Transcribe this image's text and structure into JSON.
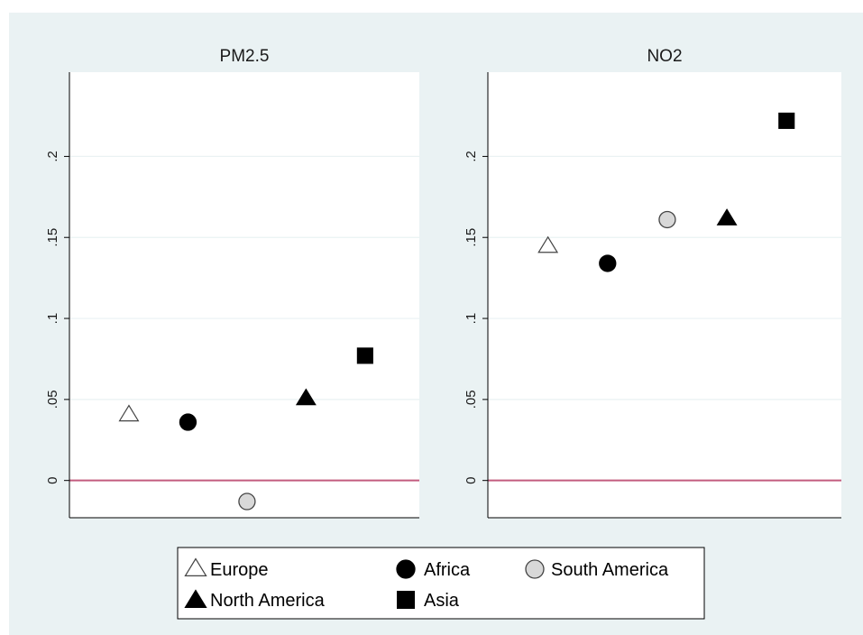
{
  "chart_data": [
    {
      "type": "scatter",
      "title": "PM2.5",
      "categories": [
        "Europe",
        "Africa",
        "South America",
        "North America",
        "Asia"
      ],
      "series": [
        {
          "name": "Europe",
          "values": [
            0.041
          ]
        },
        {
          "name": "Africa",
          "values": [
            0.036
          ]
        },
        {
          "name": "South America",
          "values": [
            -0.013
          ]
        },
        {
          "name": "North America",
          "values": [
            0.051
          ]
        },
        {
          "name": "Asia",
          "values": [
            0.077
          ]
        }
      ],
      "ylim": [
        -0.023,
        0.252
      ],
      "yticks": [
        0,
        0.05,
        0.1,
        0.15,
        0.2
      ],
      "ytick_labels": [
        "0",
        ".05",
        ".1",
        ".15",
        ".2"
      ],
      "reference_line": 0,
      "grid": true
    },
    {
      "type": "scatter",
      "title": "NO2",
      "categories": [
        "Europe",
        "Africa",
        "South America",
        "North America",
        "Asia"
      ],
      "series": [
        {
          "name": "Europe",
          "values": [
            0.145
          ]
        },
        {
          "name": "Africa",
          "values": [
            0.134
          ]
        },
        {
          "name": "South America",
          "values": [
            0.161
          ]
        },
        {
          "name": "North America",
          "values": [
            0.162
          ]
        },
        {
          "name": "Asia",
          "values": [
            0.222
          ]
        }
      ],
      "ylim": [
        -0.023,
        0.252
      ],
      "yticks": [
        0,
        0.05,
        0.1,
        0.15,
        0.2
      ],
      "ytick_labels": [
        "0",
        ".05",
        ".1",
        ".15",
        ".2"
      ],
      "reference_line": 0,
      "grid": true
    }
  ],
  "legend": {
    "placement": "bottom",
    "items": [
      {
        "label": "Europe",
        "marker": "hollow-triangle"
      },
      {
        "label": "Africa",
        "marker": "filled-circle"
      },
      {
        "label": "South America",
        "marker": "hollow-circle"
      },
      {
        "label": "North America",
        "marker": "filled-triangle"
      },
      {
        "label": "Asia",
        "marker": "filled-square"
      }
    ]
  },
  "colors": {
    "background": "#eaf2f3",
    "plot_area": "#ffffff",
    "gridline": "#eaf2f3",
    "reference_line": "#c25b7e",
    "filled_marker": "#000000",
    "europe_fill": "#ffffff",
    "europe_stroke": "#444444",
    "south_america_fill": "#d8d8d8",
    "south_america_stroke": "#444444"
  }
}
